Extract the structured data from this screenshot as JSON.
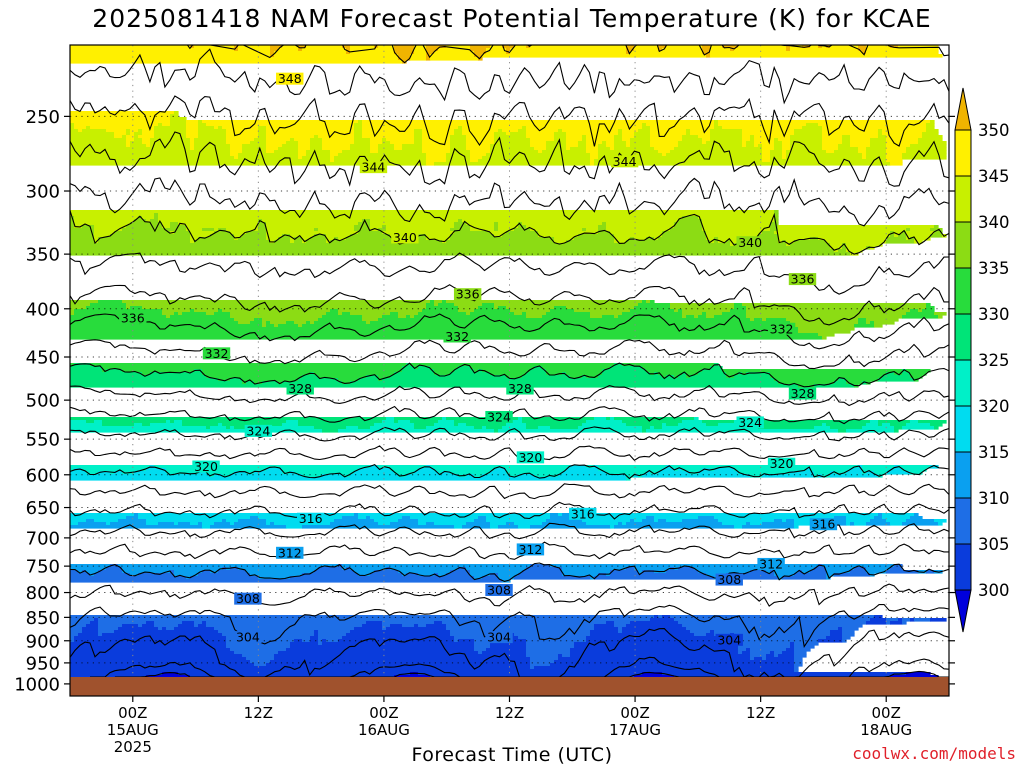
{
  "title": "2025081418 NAM Forecast Potential Temperature (K) for KCAE",
  "credit": "coolwx.com/models",
  "chart_data": {
    "type": "heatmap",
    "title": "2025081418 NAM Forecast Potential Temperature (K) for KCAE",
    "xlabel": "Forecast Time (UTC)",
    "ylabel": "",
    "x_ticks": [
      {
        "label": [
          "00Z",
          "15AUG",
          "2025"
        ],
        "hours_from_start": 6
      },
      {
        "label": [
          "12Z"
        ],
        "hours_from_start": 18
      },
      {
        "label": [
          "00Z",
          "16AUG"
        ],
        "hours_from_start": 30
      },
      {
        "label": [
          "12Z"
        ],
        "hours_from_start": 42
      },
      {
        "label": [
          "00Z",
          "17AUG"
        ],
        "hours_from_start": 54
      },
      {
        "label": [
          "12Z"
        ],
        "hours_from_start": 66
      },
      {
        "label": [
          "00Z",
          "18AUG"
        ],
        "hours_from_start": 78
      }
    ],
    "xlim_hours": [
      0,
      84
    ],
    "y_ticks_hPa": [
      250,
      300,
      350,
      400,
      450,
      500,
      550,
      600,
      650,
      700,
      750,
      800,
      850,
      900,
      950,
      1000
    ],
    "ylim_hPa": [
      1030,
      210
    ],
    "y_scale": "log-pressure",
    "colorbar": {
      "levels": [
        300,
        305,
        310,
        315,
        320,
        325,
        330,
        335,
        340,
        345,
        350
      ],
      "colors": [
        "#0000dc",
        "#0a3cdc",
        "#1e6ee6",
        "#0aa0f0",
        "#00dcf0",
        "#00f0c8",
        "#00e478",
        "#28dc3c",
        "#8cdc14",
        "#c8f000",
        "#fff000",
        "#f0b400"
      ]
    },
    "contour_labels": [
      {
        "value": "348",
        "hour": 21,
        "hPa": 228
      },
      {
        "value": "344",
        "hour": 29,
        "hPa": 283
      },
      {
        "value": "344",
        "hour": 53,
        "hPa": 279
      },
      {
        "value": "340",
        "hour": 32,
        "hPa": 336
      },
      {
        "value": "340",
        "hour": 65,
        "hPa": 340
      },
      {
        "value": "336",
        "hour": 6,
        "hPa": 409
      },
      {
        "value": "336",
        "hour": 38,
        "hPa": 386
      },
      {
        "value": "336",
        "hour": 70,
        "hPa": 372
      },
      {
        "value": "332",
        "hour": 14,
        "hPa": 446
      },
      {
        "value": "332",
        "hour": 37,
        "hPa": 428
      },
      {
        "value": "332",
        "hour": 68,
        "hPa": 420
      },
      {
        "value": "328",
        "hour": 22,
        "hPa": 486
      },
      {
        "value": "328",
        "hour": 43,
        "hPa": 486
      },
      {
        "value": "328",
        "hour": 70,
        "hPa": 492
      },
      {
        "value": "324",
        "hour": 18,
        "hPa": 539
      },
      {
        "value": "324",
        "hour": 41,
        "hPa": 521
      },
      {
        "value": "324",
        "hour": 65,
        "hPa": 528
      },
      {
        "value": "320",
        "hour": 13,
        "hPa": 588
      },
      {
        "value": "320",
        "hour": 44,
        "hPa": 575
      },
      {
        "value": "320",
        "hour": 68,
        "hPa": 584
      },
      {
        "value": "316",
        "hour": 23,
        "hPa": 668
      },
      {
        "value": "316",
        "hour": 49,
        "hPa": 660
      },
      {
        "value": "316",
        "hour": 72,
        "hPa": 677
      },
      {
        "value": "312",
        "hour": 21,
        "hPa": 726
      },
      {
        "value": "312",
        "hour": 44,
        "hPa": 720
      },
      {
        "value": "312",
        "hour": 67,
        "hPa": 746
      },
      {
        "value": "308",
        "hour": 17,
        "hPa": 812
      },
      {
        "value": "308",
        "hour": 41,
        "hPa": 795
      },
      {
        "value": "308",
        "hour": 63,
        "hPa": 775
      },
      {
        "value": "304",
        "hour": 17,
        "hPa": 892
      },
      {
        "value": "304",
        "hour": 41,
        "hPa": 892
      },
      {
        "value": "304",
        "hour": 63,
        "hPa": 898
      }
    ],
    "contour_values": [
      300,
      302,
      304,
      306,
      308,
      310,
      312,
      314,
      316,
      318,
      320,
      322,
      324,
      326,
      328,
      330,
      332,
      334,
      336,
      338,
      340,
      342,
      344,
      346,
      348,
      350
    ],
    "ground_color": "#a0522d",
    "grid": true
  }
}
